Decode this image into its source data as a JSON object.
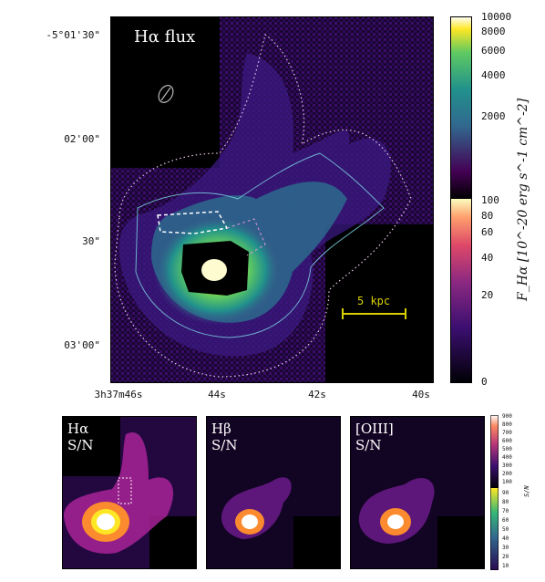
{
  "main_panel": {
    "title": "Hα flux",
    "scalebar_label": "5 kpc",
    "y_ticks": [
      "-5°01'30\"",
      "02'00\"",
      "30\"",
      "03'00\""
    ],
    "x_ticks": [
      "3h37m46s",
      "44s",
      "42s",
      "40s"
    ],
    "colorbar": {
      "label": "F_Hα [10^-20 erg s^-1 cm^-2]",
      "upper_ticks": [
        "10000",
        "8000",
        "6000",
        "4000",
        "2000"
      ],
      "lower_ticks": [
        "100",
        "80",
        "60",
        "40",
        "20",
        "0"
      ]
    }
  },
  "small_panels": [
    {
      "line1": "Hα",
      "line2": "S/N"
    },
    {
      "line1": "Hβ",
      "line2": "S/N"
    },
    {
      "line1": "[OIII]",
      "line2": "S/N"
    }
  ],
  "small_colorbar": {
    "label": "S/N",
    "upper_ticks": [
      "900",
      "800",
      "700",
      "600",
      "500",
      "400",
      "300",
      "200",
      "100"
    ],
    "lower_ticks": [
      "90",
      "80",
      "70",
      "60",
      "50",
      "40",
      "30",
      "20",
      "10"
    ]
  },
  "colors": {
    "background_dark": "#0b0414",
    "viridis_low": "#2a0a52",
    "viridis_mid": "#21918c",
    "viridis_high": "#fde725",
    "contour_dotted": "#e8c8e8",
    "scalebar": "#d8d000"
  }
}
